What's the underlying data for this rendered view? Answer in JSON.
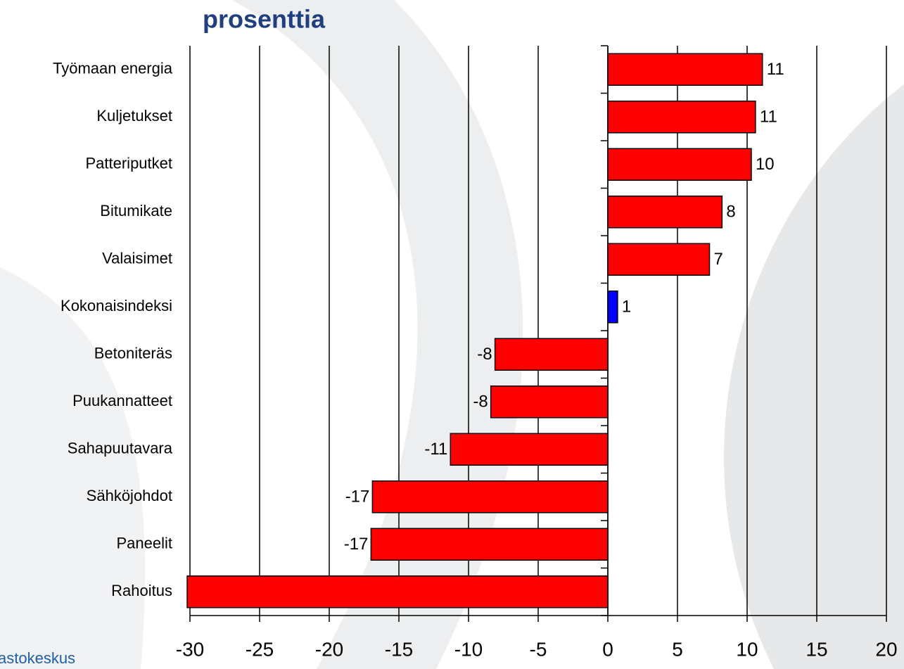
{
  "chart_data": {
    "type": "bar",
    "orientation": "horizontal",
    "title": "prosenttia",
    "source": "astokeskus",
    "categories": [
      "Työmaan energia",
      "Kuljetukset",
      "Patteriputket",
      "Bitumikate",
      "Valaisimet",
      "Kokonaisindeksi",
      "Betoniteräs",
      "Puukannatteet",
      "Sahapuutavara",
      "Sähköjohdot",
      "Paneelit",
      "Rahoitus"
    ],
    "values": [
      11.1,
      10.6,
      10.3,
      8.2,
      7.3,
      0.7,
      -8.1,
      -8.4,
      -11.3,
      -16.9,
      -17.0,
      -30.2
    ],
    "value_labels": [
      "11",
      "11",
      "10",
      "8",
      "7",
      "1",
      "-8",
      "-8",
      "-11",
      "-17",
      "-17",
      null
    ],
    "colors": [
      "#ff0000",
      "#ff0000",
      "#ff0000",
      "#ff0000",
      "#ff0000",
      "#0000ff",
      "#ff0000",
      "#ff0000",
      "#ff0000",
      "#ff0000",
      "#ff0000",
      "#ff0000"
    ],
    "xlim": [
      -30,
      20
    ],
    "xticks": [
      -30,
      -25,
      -20,
      -15,
      -10,
      -5,
      0,
      5,
      10,
      15,
      20
    ],
    "grid": true
  }
}
